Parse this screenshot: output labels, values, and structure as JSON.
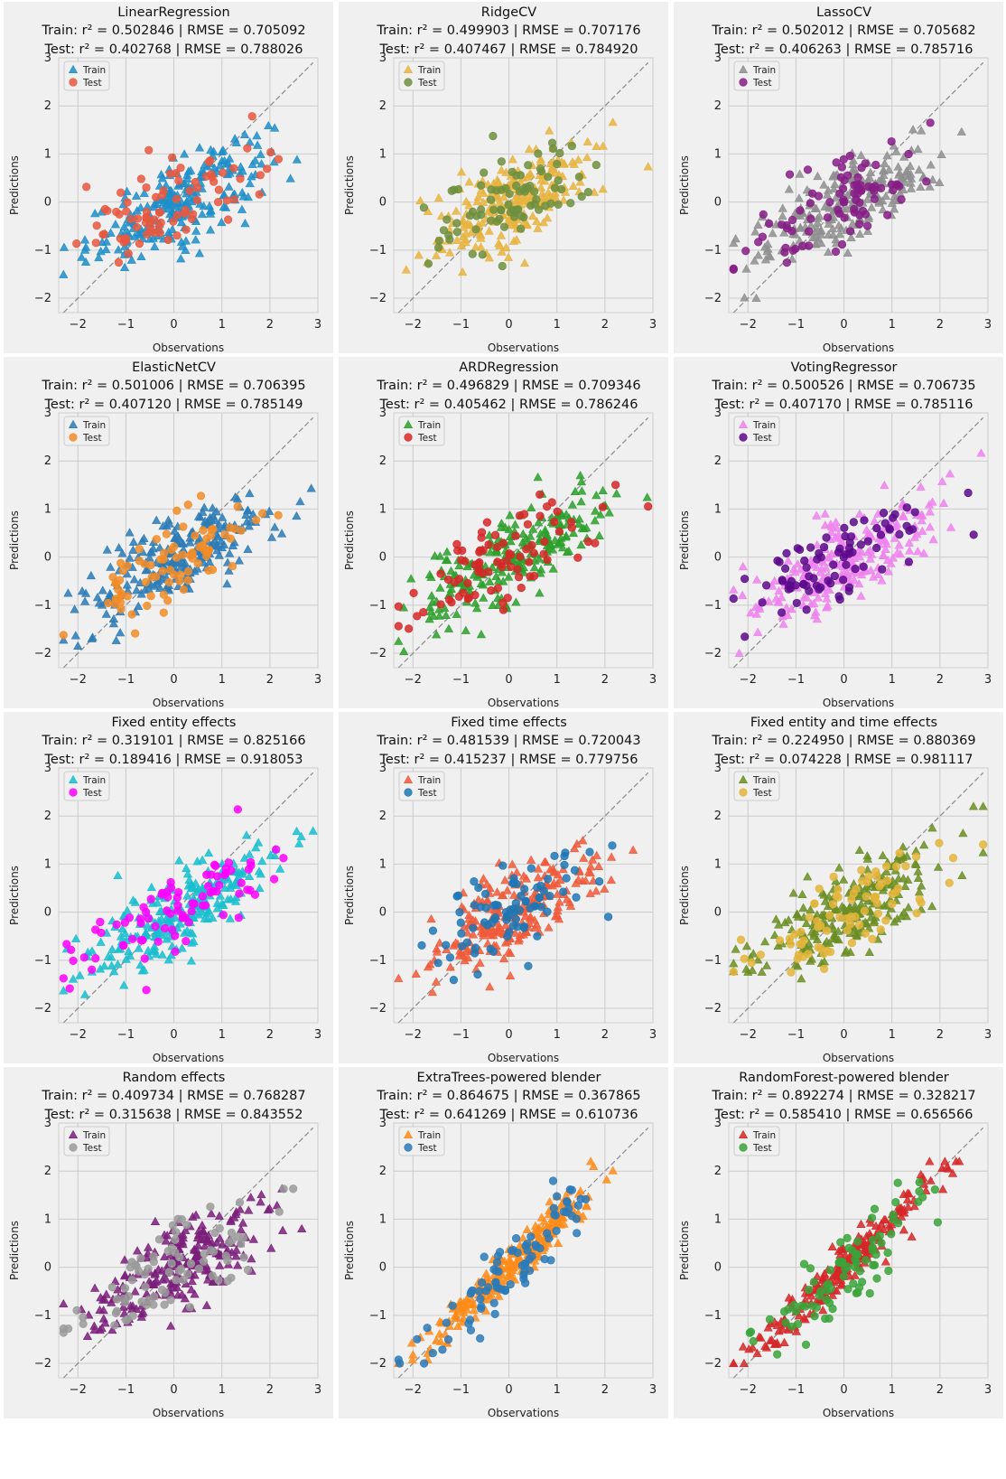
{
  "figure": {
    "axis_labels": {
      "x": "Observations",
      "y": "Predictions"
    },
    "legend_labels": {
      "train": "Train",
      "test": "Test"
    },
    "metric_labels": {
      "r2": "r²",
      "rmse": "RMSE"
    }
  },
  "chart_data": [
    {
      "type": "scatter",
      "title": "LinearRegression",
      "train_metrics": "Train: r² = 0.502846 | RMSE = 0.705092",
      "test_metrics": "Test: r² = 0.402768 | RMSE = 0.788026",
      "colors": {
        "train": "#1f8ec9",
        "test": "#e8583f"
      },
      "markers": {
        "train": "triangle",
        "test": "circle"
      },
      "pattern": "linear",
      "xlabel": "Observations",
      "ylabel": "Predictions",
      "xlim": [
        -2.4,
        3.0
      ],
      "ylim": [
        -2.3,
        3.0
      ],
      "xticks": [
        -2,
        -1,
        0,
        1,
        2,
        3
      ],
      "yticks": [
        -2,
        -1,
        0,
        1,
        2,
        3
      ],
      "identity_line": true,
      "grid": true,
      "legend": "top-left"
    },
    {
      "type": "scatter",
      "title": "RidgeCV",
      "train_metrics": "Train: r² = 0.499903 | RMSE = 0.707176",
      "test_metrics": "Test: r² = 0.407467 | RMSE = 0.784920",
      "colors": {
        "train": "#e7b43f",
        "test": "#6f8f3e"
      },
      "markers": {
        "train": "triangle",
        "test": "circle"
      },
      "pattern": "linear",
      "xlabel": "Observations",
      "ylabel": "Predictions",
      "xlim": [
        -2.4,
        3.0
      ],
      "ylim": [
        -2.3,
        3.0
      ],
      "xticks": [
        -2,
        -1,
        0,
        1,
        2,
        3
      ],
      "yticks": [
        -2,
        -1,
        0,
        1,
        2,
        3
      ],
      "identity_line": true,
      "grid": true,
      "legend": "top-left"
    },
    {
      "type": "scatter",
      "title": "LassoCV",
      "train_metrics": "Train: r² = 0.502012 | RMSE = 0.705682",
      "test_metrics": "Test: r² = 0.406263 | RMSE = 0.785716",
      "colors": {
        "train": "#8f8f8f",
        "test": "#861d86"
      },
      "markers": {
        "train": "triangle",
        "test": "circle"
      },
      "pattern": "linear",
      "xlabel": "Observations",
      "ylabel": "Predictions",
      "xlim": [
        -2.4,
        3.0
      ],
      "ylim": [
        -2.3,
        3.0
      ],
      "xticks": [
        -2,
        -1,
        0,
        1,
        2,
        3
      ],
      "yticks": [
        -2,
        -1,
        0,
        1,
        2,
        3
      ],
      "identity_line": true,
      "grid": true,
      "legend": "top-left"
    },
    {
      "type": "scatter",
      "title": "ElasticNetCV",
      "train_metrics": "Train: r² = 0.501006 | RMSE = 0.706395",
      "test_metrics": "Test: r² = 0.407120 | RMSE = 0.785149",
      "colors": {
        "train": "#2c7bb6",
        "test": "#f28c28"
      },
      "markers": {
        "train": "triangle",
        "test": "circle"
      },
      "pattern": "linear",
      "xlabel": "Observations",
      "ylabel": "Predictions",
      "xlim": [
        -2.4,
        3.0
      ],
      "ylim": [
        -2.3,
        3.0
      ],
      "xticks": [
        -2,
        -1,
        0,
        1,
        2,
        3
      ],
      "yticks": [
        -2,
        -1,
        0,
        1,
        2,
        3
      ],
      "identity_line": true,
      "grid": true,
      "legend": "top-left"
    },
    {
      "type": "scatter",
      "title": "ARDRegression",
      "train_metrics": "Train: r² = 0.496829 | RMSE = 0.709346",
      "test_metrics": "Test: r² = 0.405462 | RMSE = 0.786246",
      "colors": {
        "train": "#2ca02c",
        "test": "#d62728"
      },
      "markers": {
        "train": "triangle",
        "test": "circle"
      },
      "pattern": "linear",
      "xlabel": "Observations",
      "ylabel": "Predictions",
      "xlim": [
        -2.4,
        3.0
      ],
      "ylim": [
        -2.3,
        3.0
      ],
      "xticks": [
        -2,
        -1,
        0,
        1,
        2,
        3
      ],
      "yticks": [
        -2,
        -1,
        0,
        1,
        2,
        3
      ],
      "identity_line": true,
      "grid": true,
      "legend": "top-left"
    },
    {
      "type": "scatter",
      "title": "VotingRegressor",
      "train_metrics": "Train: r² = 0.500526 | RMSE = 0.706735",
      "test_metrics": "Test: r² = 0.407170 | RMSE = 0.785116",
      "colors": {
        "train": "#ee82ee",
        "test": "#5c0a8c"
      },
      "markers": {
        "train": "triangle",
        "test": "circle"
      },
      "pattern": "linear",
      "xlabel": "Observations",
      "ylabel": "Predictions",
      "xlim": [
        -2.4,
        3.0
      ],
      "ylim": [
        -2.3,
        3.0
      ],
      "xticks": [
        -2,
        -1,
        0,
        1,
        2,
        3
      ],
      "yticks": [
        -2,
        -1,
        0,
        1,
        2,
        3
      ],
      "identity_line": true,
      "grid": true,
      "legend": "top-left"
    },
    {
      "type": "scatter",
      "title": "Fixed entity effects",
      "train_metrics": "Train: r² = 0.319101 | RMSE = 0.825166",
      "test_metrics": "Test: r² = 0.189416 | RMSE = 0.918053",
      "colors": {
        "train": "#17becf",
        "test": "#ff00ff"
      },
      "markers": {
        "train": "triangle",
        "test": "circle"
      },
      "pattern": "linear",
      "xlabel": "Observations",
      "ylabel": "Predictions",
      "xlim": [
        -2.4,
        3.0
      ],
      "ylim": [
        -2.3,
        3.0
      ],
      "xticks": [
        -2,
        -1,
        0,
        1,
        2,
        3
      ],
      "yticks": [
        -2,
        -1,
        0,
        1,
        2,
        3
      ],
      "identity_line": true,
      "grid": true,
      "legend": "top-left"
    },
    {
      "type": "scatter",
      "title": "Fixed time effects",
      "train_metrics": "Train: r² = 0.481539 | RMSE = 0.720043",
      "test_metrics": "Test: r² = 0.415237 | RMSE = 0.779756",
      "colors": {
        "train": "#f05a3a",
        "test": "#1f77b4"
      },
      "markers": {
        "train": "triangle",
        "test": "circle"
      },
      "pattern": "linear",
      "xlabel": "Observations",
      "ylabel": "Predictions",
      "xlim": [
        -2.4,
        3.0
      ],
      "ylim": [
        -2.3,
        3.0
      ],
      "xticks": [
        -2,
        -1,
        0,
        1,
        2,
        3
      ],
      "yticks": [
        -2,
        -1,
        0,
        1,
        2,
        3
      ],
      "identity_line": true,
      "grid": true,
      "legend": "top-left"
    },
    {
      "type": "scatter",
      "title": "Fixed entity and time effects",
      "train_metrics": "Train: r² = 0.224950 | RMSE = 0.880369",
      "test_metrics": "Test: r² = 0.074228 | RMSE = 0.981117",
      "colors": {
        "train": "#6b8e23",
        "test": "#e3b53b"
      },
      "markers": {
        "train": "triangle",
        "test": "circle"
      },
      "pattern": "linear",
      "xlabel": "Observations",
      "ylabel": "Predictions",
      "xlim": [
        -2.4,
        3.0
      ],
      "ylim": [
        -2.3,
        3.0
      ],
      "xticks": [
        -2,
        -1,
        0,
        1,
        2,
        3
      ],
      "yticks": [
        -2,
        -1,
        0,
        1,
        2,
        3
      ],
      "identity_line": true,
      "grid": true,
      "legend": "top-left"
    },
    {
      "type": "scatter",
      "title": "Random effects",
      "train_metrics": "Train: r² = 0.409734 | RMSE = 0.768287",
      "test_metrics": "Test: r² = 0.315638 | RMSE = 0.843552",
      "colors": {
        "train": "#7b1f7b",
        "test": "#9a9a9a"
      },
      "markers": {
        "train": "triangle",
        "test": "circle"
      },
      "pattern": "linear",
      "xlabel": "Observations",
      "ylabel": "Predictions",
      "xlim": [
        -2.4,
        3.0
      ],
      "ylim": [
        -2.3,
        3.0
      ],
      "xticks": [
        -2,
        -1,
        0,
        1,
        2,
        3
      ],
      "yticks": [
        -2,
        -1,
        0,
        1,
        2,
        3
      ],
      "identity_line": true,
      "grid": true,
      "legend": "top-left"
    },
    {
      "type": "scatter",
      "title": "ExtraTrees-powered blender",
      "train_metrics": "Train: r² = 0.864675 | RMSE = 0.367865",
      "test_metrics": "Test: r² = 0.641269 | RMSE = 0.610736",
      "colors": {
        "train": "#ff8c1a",
        "test": "#2a7ab9"
      },
      "markers": {
        "train": "triangle",
        "test": "circle"
      },
      "pattern": "tight",
      "xlabel": "Observations",
      "ylabel": "Predictions",
      "xlim": [
        -2.4,
        3.0
      ],
      "ylim": [
        -2.3,
        3.0
      ],
      "xticks": [
        -2,
        -1,
        0,
        1,
        2,
        3
      ],
      "yticks": [
        -2,
        -1,
        0,
        1,
        2,
        3
      ],
      "identity_line": true,
      "grid": true,
      "legend": "top-left"
    },
    {
      "type": "scatter",
      "title": "RandomForest-powered blender",
      "train_metrics": "Train: r² = 0.892274 | RMSE = 0.328217",
      "test_metrics": "Test: r² = 0.585410 | RMSE = 0.656566",
      "colors": {
        "train": "#d62728",
        "test": "#3aa33a"
      },
      "markers": {
        "train": "triangle",
        "test": "circle"
      },
      "pattern": "tight",
      "xlabel": "Observations",
      "ylabel": "Predictions",
      "xlim": [
        -2.4,
        3.0
      ],
      "ylim": [
        -2.3,
        3.0
      ],
      "xticks": [
        -2,
        -1,
        0,
        1,
        2,
        3
      ],
      "yticks": [
        -2,
        -1,
        0,
        1,
        2,
        3
      ],
      "identity_line": true,
      "grid": true,
      "legend": "top-left"
    }
  ]
}
